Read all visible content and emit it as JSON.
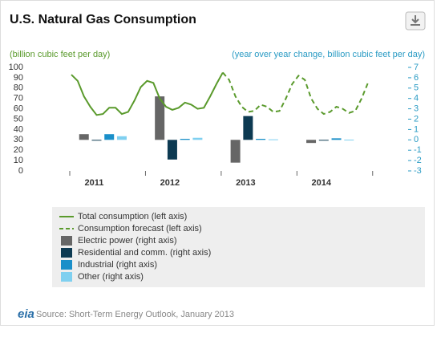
{
  "chart_data": {
    "type": "combo",
    "title": "U.S. Natural Gas Consumption",
    "y_label": "(billion cubic feet per day)",
    "y2_label": "(year over year change, billion cubic feet per day)",
    "categories": [
      null,
      null,
      null,
      null,
      "2011",
      null,
      null,
      null,
      null,
      null,
      null,
      null,
      null,
      null,
      null,
      null,
      "2012",
      null,
      null,
      null,
      null,
      null,
      null,
      null,
      null,
      null,
      null,
      null,
      "2013",
      null,
      null,
      null,
      null,
      null,
      null,
      null,
      null,
      null,
      null,
      null,
      "2014",
      null,
      null,
      null,
      null,
      null,
      null,
      null
    ],
    "ylim": [
      0,
      100
    ],
    "yticks": [
      0,
      10,
      20,
      30,
      40,
      50,
      60,
      70,
      80,
      90,
      100
    ],
    "y2lim": [
      -3,
      7
    ],
    "y2ticks": [
      -3,
      -2,
      -1,
      0,
      1,
      2,
      3,
      4,
      5,
      6,
      7
    ],
    "grid": false,
    "legend": "bottom",
    "series": [
      {
        "name": "Total consumption (left axis)",
        "type": "line",
        "dashed": false,
        "color": "#5a9a2c",
        "values": [
          93,
          87,
          72,
          62,
          54,
          55,
          61,
          61,
          55,
          57,
          68,
          81,
          87,
          85,
          70,
          62,
          59,
          61,
          66,
          64,
          60,
          61,
          72,
          84,
          95,
          null,
          null,
          null,
          null,
          null,
          null,
          null,
          null,
          null,
          null,
          null,
          null,
          null,
          null,
          null,
          null,
          null,
          null,
          null,
          null,
          null,
          null,
          null
        ]
      },
      {
        "name": "Consumption forecast (left axis)",
        "type": "line",
        "dashed": true,
        "color": "#5a9a2c",
        "values": [
          null,
          null,
          null,
          null,
          null,
          null,
          null,
          null,
          null,
          null,
          null,
          null,
          null,
          null,
          null,
          null,
          null,
          null,
          null,
          null,
          null,
          null,
          null,
          null,
          95,
          88,
          72,
          62,
          57,
          58,
          64,
          62,
          57,
          58,
          70,
          84,
          92,
          88,
          70,
          60,
          55,
          57,
          62,
          60,
          56,
          58,
          70,
          85
        ]
      },
      {
        "name": "Electric power (right axis)",
        "type": "bar",
        "axis": "y2",
        "color": "#666666",
        "values": [
          null,
          null,
          0.55,
          null,
          null,
          null,
          null,
          null,
          null,
          null,
          null,
          null,
          null,
          null,
          4.2,
          null,
          null,
          null,
          null,
          null,
          null,
          null,
          null,
          null,
          null,
          null,
          -2.2,
          null,
          null,
          null,
          null,
          null,
          null,
          null,
          null,
          null,
          null,
          null,
          -0.3,
          null,
          null,
          null,
          null,
          null,
          null,
          null,
          null,
          null
        ]
      },
      {
        "name": "Residential and comm. (right axis)",
        "type": "bar",
        "axis": "y2",
        "color": "#0d3a52",
        "values": [
          null,
          null,
          null,
          null,
          0,
          null,
          null,
          null,
          null,
          null,
          null,
          null,
          null,
          null,
          null,
          null,
          -1.9,
          null,
          null,
          null,
          null,
          null,
          null,
          null,
          null,
          null,
          null,
          null,
          2.3,
          null,
          null,
          null,
          null,
          null,
          null,
          null,
          null,
          null,
          null,
          null,
          -0.05,
          null,
          null,
          null,
          null,
          null,
          null,
          null
        ]
      },
      {
        "name": "Industrial (right axis)",
        "type": "bar",
        "axis": "y2",
        "color": "#1a8fc9",
        "values": [
          null,
          null,
          null,
          null,
          null,
          null,
          0.55,
          null,
          null,
          null,
          null,
          null,
          null,
          null,
          null,
          null,
          null,
          null,
          0.1,
          null,
          null,
          null,
          null,
          null,
          null,
          null,
          null,
          null,
          null,
          null,
          0.1,
          null,
          null,
          null,
          null,
          null,
          null,
          null,
          null,
          null,
          null,
          null,
          0.15,
          null,
          null,
          null,
          null,
          null
        ]
      },
      {
        "name": "Other (right axis)",
        "type": "bar",
        "axis": "y2",
        "color": "#7fd0f0",
        "values": [
          null,
          null,
          null,
          null,
          null,
          null,
          null,
          null,
          0.35,
          null,
          null,
          null,
          null,
          null,
          null,
          null,
          null,
          null,
          null,
          null,
          0.2,
          null,
          null,
          null,
          null,
          null,
          null,
          null,
          null,
          null,
          null,
          null,
          0.05,
          null,
          null,
          null,
          null,
          null,
          null,
          null,
          null,
          null,
          null,
          null,
          0.02,
          null,
          null,
          null
        ]
      }
    ],
    "source": "Source: Short-Term Energy Outlook, January 2013",
    "logo": "eia"
  }
}
